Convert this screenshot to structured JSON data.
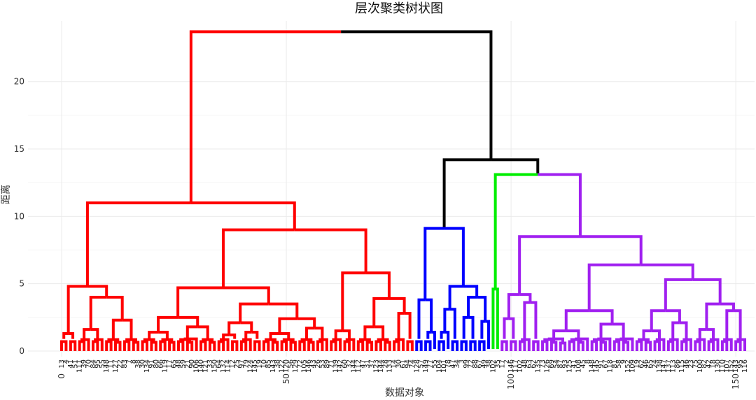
{
  "chart_data": {
    "type": "dendrogram",
    "title": "层次聚类树状图",
    "xlabel": "数据对象",
    "ylabel": "距离",
    "ylim": [
      0,
      24.5
    ],
    "xlim": [
      0,
      153
    ],
    "yticks": [
      0,
      5,
      10,
      15,
      20
    ],
    "xticks": [
      0,
      50,
      100,
      150
    ],
    "grid": true,
    "colors": {
      "cluster_1": "#ff0000",
      "cluster_2": "#0000ff",
      "cluster_3": "#00ee00",
      "cluster_4": "#a020f0",
      "above_cut": "#000000"
    },
    "leaf_count": 153,
    "leaf_labels": [
      "13",
      "4",
      "41",
      "51",
      "111",
      "39",
      "70",
      "84",
      "95",
      "55",
      "148",
      "11",
      "127",
      "22",
      "83",
      "7",
      "8",
      "38",
      "30",
      "134",
      "91",
      "80",
      "66",
      "119",
      "17",
      "65",
      "48",
      "59",
      "21",
      "90",
      "106",
      "140",
      "121",
      "33",
      "150",
      "64",
      "132",
      "114",
      "12",
      "25",
      "97",
      "79",
      "124",
      "145",
      "19",
      "10",
      "85",
      "143",
      "38",
      "122",
      "120",
      "56",
      "129",
      "72",
      "105",
      "146",
      "43",
      "26",
      "53",
      "89",
      "71",
      "139",
      "142",
      "60",
      "32",
      "144",
      "112",
      "47",
      "31",
      "37",
      "123",
      "144",
      "28",
      "133",
      "14",
      "30",
      "61",
      "94",
      "74",
      "128",
      "57",
      "149",
      "77",
      "55",
      "104",
      "101",
      "78",
      "47",
      "34",
      "3",
      "99",
      "72",
      "88",
      "67",
      "49",
      "38",
      "102",
      "35",
      "17",
      "2",
      "146",
      "117",
      "102",
      "48",
      "63",
      "62",
      "135",
      "73",
      "126",
      "69",
      "54",
      "87",
      "93",
      "125",
      "41",
      "108",
      "45",
      "8",
      "148",
      "145",
      "91",
      "67",
      "118",
      "81",
      "58",
      "9",
      "152",
      "109",
      "19",
      "62",
      "46",
      "65",
      "24",
      "138",
      "147",
      "137",
      "113",
      "86",
      "115",
      "46",
      "23",
      "75",
      "100",
      "82",
      "42",
      "18",
      "130",
      "110",
      "107",
      "152",
      "143",
      "95",
      "116"
    ],
    "leaf_clusters": [
      {
        "cluster": "cluster_1",
        "count": 79
      },
      {
        "cluster": "cluster_2",
        "count": 17
      },
      {
        "cluster": "cluster_3",
        "count": 2
      },
      {
        "cluster": "cluster_4",
        "count": 55
      }
    ],
    "merges": [
      {
        "left": [
          0,
          78
        ],
        "right": [
          79,
          152
        ],
        "height": 23.7,
        "left_color": "cluster_1",
        "right_color": "above_cut"
      },
      {
        "left": [
          79,
          95
        ],
        "right": [
          96,
          152
        ],
        "height": 14.2,
        "color": "above_cut"
      },
      {
        "left": [
          96,
          97
        ],
        "right": [
          98,
          152
        ],
        "height": 13.1,
        "left_color": "cluster_3",
        "right_color": "cluster_4"
      },
      {
        "left": [
          0,
          17
        ],
        "right": [
          18,
          78
        ],
        "height": 11.0,
        "color": "cluster_1"
      },
      {
        "left": [
          18,
          59
        ],
        "right": [
          60,
          78
        ],
        "height": 9.0,
        "color": "cluster_1"
      },
      {
        "left": [
          79,
          83
        ],
        "right": [
          84,
          95
        ],
        "height": 9.1,
        "color": "cluster_2"
      },
      {
        "left": [
          98,
          106
        ],
        "right": [
          107,
          152
        ],
        "height": 8.5,
        "color": "cluster_4"
      },
      {
        "left": [
          107,
          127
        ],
        "right": [
          128,
          152
        ],
        "height": 6.4,
        "color": "cluster_4"
      },
      {
        "left": [
          60,
          65
        ],
        "right": [
          66,
          78
        ],
        "height": 5.8,
        "color": "cluster_1"
      },
      {
        "left": [
          18,
          34
        ],
        "right": [
          35,
          59
        ],
        "height": 4.7,
        "color": "cluster_1"
      },
      {
        "left": [
          0,
          3
        ],
        "right": [
          4,
          17
        ],
        "height": 4.8,
        "color": "cluster_1"
      },
      {
        "left": [
          128,
          140
        ],
        "right": [
          141,
          152
        ],
        "height": 5.3,
        "color": "cluster_4"
      },
      {
        "left": [
          84,
          88
        ],
        "right": [
          89,
          95
        ],
        "height": 4.8,
        "color": "cluster_2"
      },
      {
        "left": [
          98,
          101
        ],
        "right": [
          102,
          106
        ],
        "height": 4.2,
        "color": "cluster_4"
      },
      {
        "left": [
          4,
          9
        ],
        "right": [
          10,
          17
        ],
        "height": 4.0,
        "color": "cluster_1"
      },
      {
        "left": [
          66,
          73
        ],
        "right": [
          74,
          78
        ],
        "height": 3.9,
        "color": "cluster_1"
      },
      {
        "left": [
          79,
          80
        ],
        "right": [
          81,
          83
        ],
        "height": 3.8,
        "color": "cluster_2"
      },
      {
        "left": [
          35,
          44
        ],
        "right": [
          45,
          59
        ],
        "height": 3.5,
        "color": "cluster_1"
      },
      {
        "left": [
          141,
          146
        ],
        "right": [
          147,
          152
        ],
        "height": 3.5,
        "color": "cluster_4"
      },
      {
        "left": [
          107,
          117
        ],
        "right": [
          118,
          127
        ],
        "height": 3.0,
        "color": "cluster_4"
      },
      {
        "left": [
          128,
          134
        ],
        "right": [
          135,
          140
        ],
        "height": 3.0,
        "color": "cluster_4"
      },
      {
        "left": [
          84,
          86
        ],
        "right": [
          87,
          88
        ],
        "height": 3.1,
        "color": "cluster_2"
      },
      {
        "left": [
          89,
          92
        ],
        "right": [
          93,
          95
        ],
        "height": 4.0,
        "color": "cluster_2"
      },
      {
        "left": [
          18,
          25
        ],
        "right": [
          26,
          34
        ],
        "height": 2.5,
        "color": "cluster_1"
      },
      {
        "left": [
          45,
          52
        ],
        "right": [
          53,
          59
        ],
        "height": 2.4,
        "color": "cluster_1"
      },
      {
        "left": [
          35,
          39
        ],
        "right": [
          40,
          44
        ],
        "height": 2.1,
        "color": "cluster_1"
      },
      {
        "left": [
          102,
          104
        ],
        "right": [
          105,
          106
        ],
        "height": 3.6,
        "color": "cluster_4"
      },
      {
        "left": [
          98,
          99
        ],
        "right": [
          100,
          101
        ],
        "height": 2.4,
        "color": "cluster_4"
      },
      {
        "left": [
          60,
          62
        ],
        "right": [
          63,
          65
        ],
        "height": 1.5,
        "color": "cluster_1"
      },
      {
        "left": [
          66,
          69
        ],
        "right": [
          70,
          73
        ],
        "height": 1.8,
        "color": "cluster_1"
      },
      {
        "left": [
          74,
          76
        ],
        "right": [
          77,
          78
        ],
        "height": 2.8,
        "color": "cluster_1"
      },
      {
        "left": [
          10,
          13
        ],
        "right": [
          14,
          17
        ],
        "height": 2.3,
        "color": "cluster_1"
      },
      {
        "left": [
          0,
          1
        ],
        "right": [
          2,
          3
        ],
        "height": 1.3,
        "color": "cluster_1"
      },
      {
        "left": [
          4,
          6
        ],
        "right": [
          7,
          9
        ],
        "height": 1.6,
        "color": "cluster_1"
      },
      {
        "left": [
          26,
          30
        ],
        "right": [
          31,
          34
        ],
        "height": 1.8,
        "color": "cluster_1"
      },
      {
        "left": [
          18,
          21
        ],
        "right": [
          22,
          25
        ],
        "height": 1.4,
        "color": "cluster_1"
      },
      {
        "left": [
          53,
          56
        ],
        "right": [
          57,
          59
        ],
        "height": 1.7,
        "color": "cluster_1"
      },
      {
        "left": [
          45,
          48
        ],
        "right": [
          49,
          52
        ],
        "height": 1.3,
        "color": "cluster_1"
      },
      {
        "left": [
          35,
          37
        ],
        "right": [
          38,
          39
        ],
        "height": 1.2,
        "color": "cluster_1"
      },
      {
        "left": [
          40,
          42
        ],
        "right": [
          43,
          44
        ],
        "height": 1.4,
        "color": "cluster_1"
      },
      {
        "left": [
          107,
          112
        ],
        "right": [
          113,
          117
        ],
        "height": 1.5,
        "color": "cluster_4"
      },
      {
        "left": [
          118,
          122
        ],
        "right": [
          123,
          127
        ],
        "height": 2.0,
        "color": "cluster_4"
      },
      {
        "left": [
          128,
          131
        ],
        "right": [
          132,
          134
        ],
        "height": 1.5,
        "color": "cluster_4"
      },
      {
        "left": [
          135,
          137
        ],
        "right": [
          138,
          140
        ],
        "height": 2.1,
        "color": "cluster_4"
      },
      {
        "left": [
          141,
          143
        ],
        "right": [
          144,
          146
        ],
        "height": 1.6,
        "color": "cluster_4"
      },
      {
        "left": [
          147,
          149
        ],
        "right": [
          150,
          152
        ],
        "height": 3.0,
        "color": "cluster_4"
      },
      {
        "left": [
          89,
          90
        ],
        "right": [
          91,
          92
        ],
        "height": 2.5,
        "color": "cluster_2"
      },
      {
        "left": [
          93,
          94
        ],
        "right": [
          95,
          95
        ],
        "height": 2.2,
        "color": "cluster_2"
      },
      {
        "left": [
          81,
          82
        ],
        "right": [
          83,
          83
        ],
        "height": 1.4,
        "color": "cluster_2"
      },
      {
        "left": [
          84,
          85
        ],
        "right": [
          86,
          86
        ],
        "height": 1.4,
        "color": "cluster_2"
      },
      {
        "left": [
          96,
          96
        ],
        "right": [
          97,
          97
        ],
        "height": 4.6,
        "color": "cluster_3"
      }
    ]
  }
}
